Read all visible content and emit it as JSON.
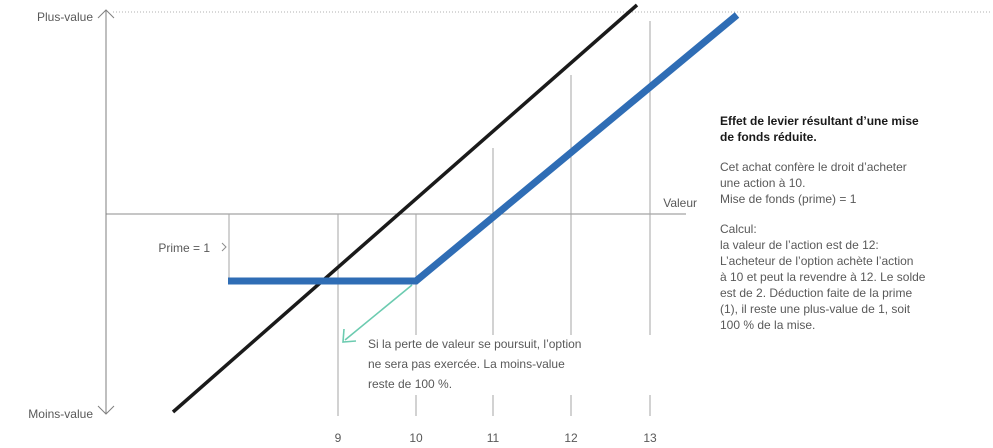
{
  "axis": {
    "y_top_label": "Plus-value",
    "y_bottom_label": "Moins-value",
    "value_label": "Valeur",
    "x_ticks": [
      "9",
      "10",
      "11",
      "12",
      "13"
    ]
  },
  "premium_label": "Prime = 1",
  "note": {
    "lines": [
      "Si la perte de valeur se poursuit, l’option",
      "ne sera pas exercée. La moins-value",
      "reste de 100 %."
    ]
  },
  "sidebar": {
    "title_lines": [
      "Effet de levier résultant d’une mise",
      "de fonds réduite."
    ],
    "para1_lines": [
      "Cet achat confère le droit d’acheter",
      "une action à 10.",
      "Mise de fonds (prime) = 1"
    ],
    "para2_lines": [
      "Calcul:",
      "la valeur de l’action est de 12:",
      "L’acheteur de l’option achète l’action",
      "à 10 et peut la revendre à 12. Le solde",
      "est de 2. Déduction faite de la prime",
      "(1), il reste une plus-value de 1, soit",
      "100 % de la mise."
    ]
  },
  "colors": {
    "stock_line": "#1a1a1a",
    "option_line": "#2f6db5",
    "arrow": "#6ccbb0",
    "axis": "#7f7f7f",
    "grid": "#a6a6a6",
    "dotted_top": "#b0b0b0"
  }
}
